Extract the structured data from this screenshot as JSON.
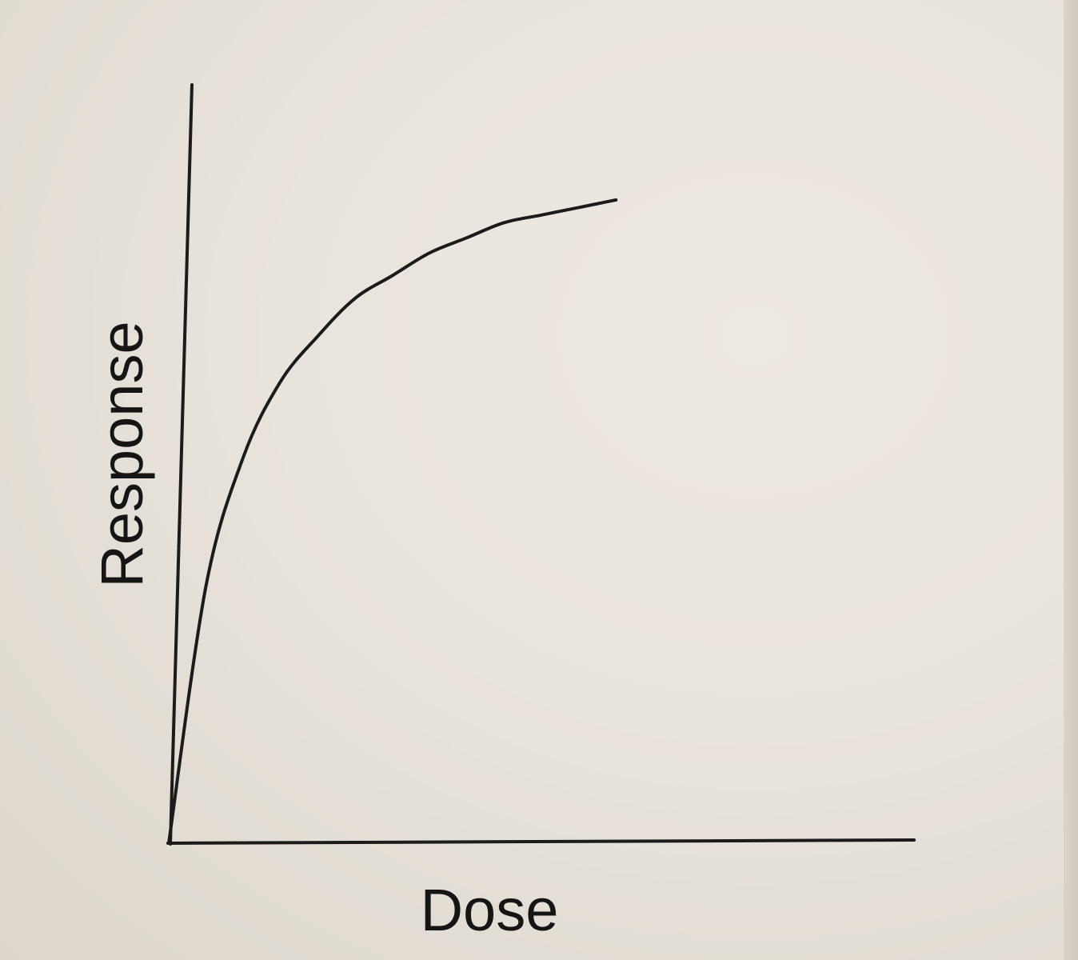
{
  "chart_data": {
    "type": "line",
    "xlabel": "Dose",
    "ylabel": "Response",
    "grid": false,
    "legend": "none",
    "tick_labels": false,
    "series": [
      {
        "shape": "hyperbolic saturation (dose-response)",
        "x": [
          0,
          0.05,
          0.1,
          0.15,
          0.2,
          0.25,
          0.3,
          0.35,
          0.4,
          0.45,
          0.5,
          0.55,
          0.6
        ],
        "y": [
          0,
          0.34,
          0.51,
          0.61,
          0.67,
          0.72,
          0.75,
          0.78,
          0.8,
          0.82,
          0.83,
          0.84,
          0.85
        ]
      }
    ],
    "xlim": [
      0,
      1
    ],
    "ylim": [
      0,
      1
    ]
  },
  "colors": {
    "ink": "#1b1b1b",
    "paper": "#e7e2da"
  }
}
